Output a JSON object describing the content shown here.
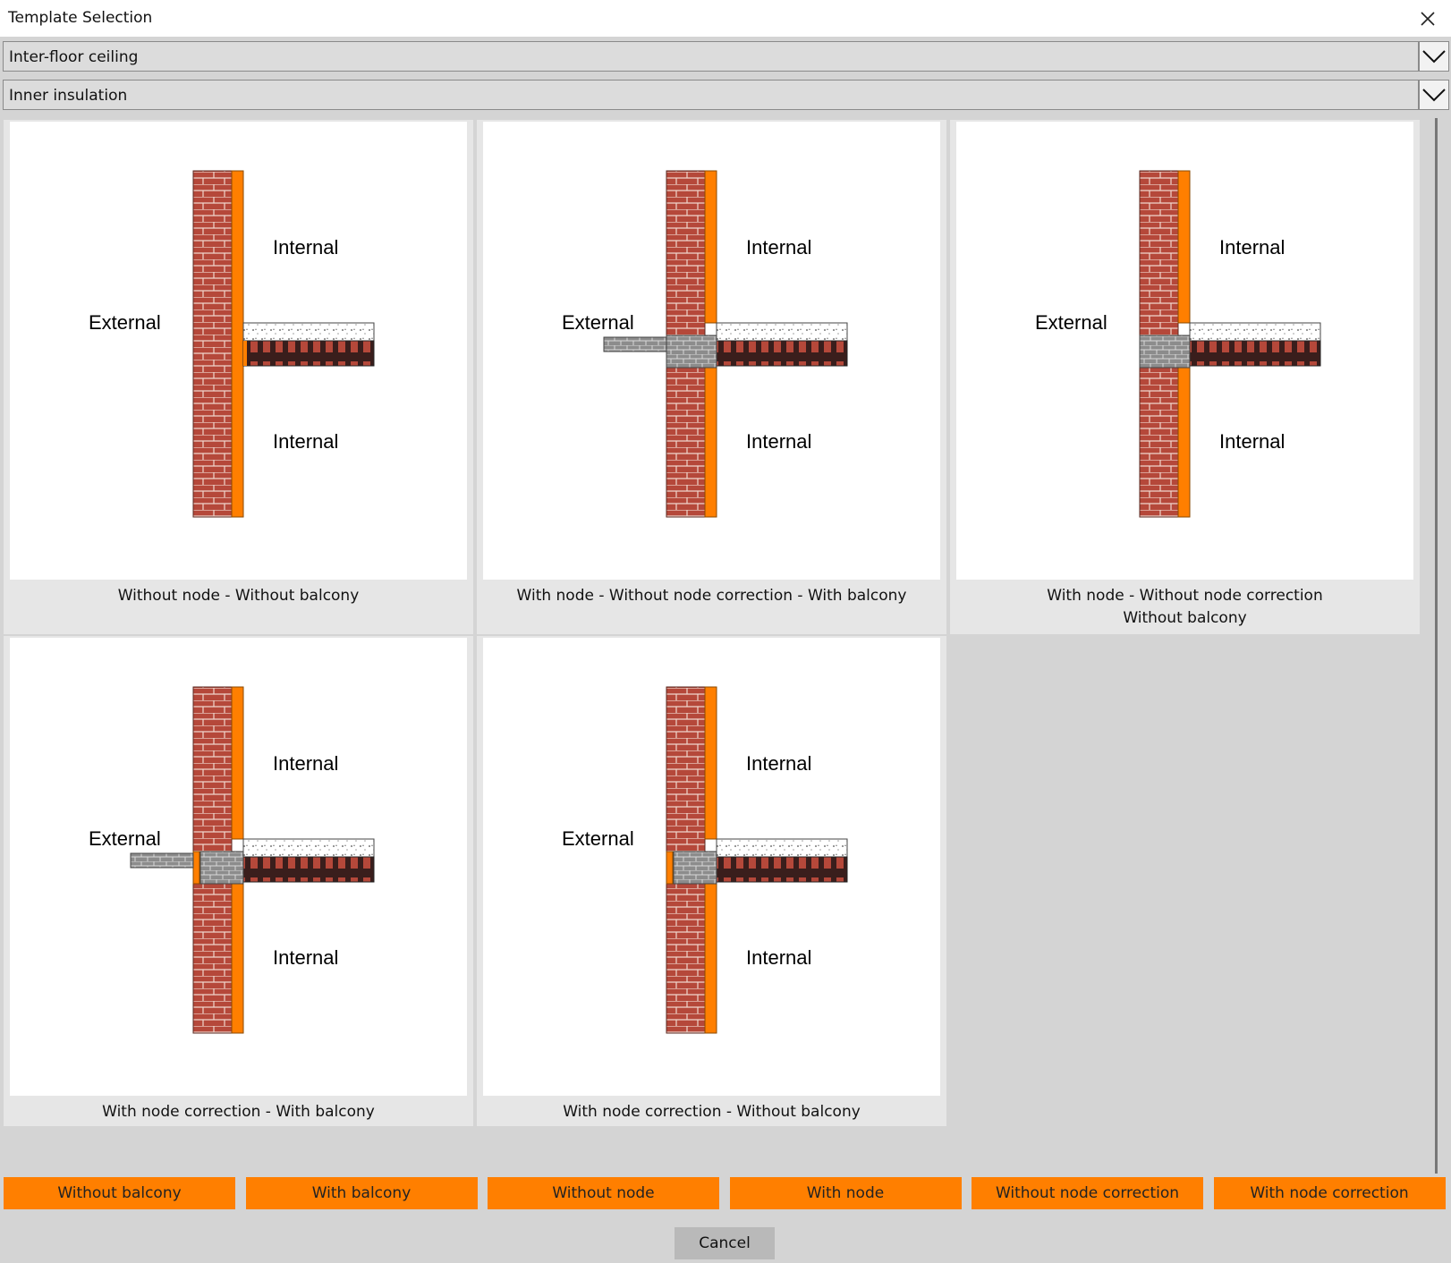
{
  "window": {
    "title": "Template Selection"
  },
  "dropdowns": [
    {
      "value": "Inter-floor ceiling"
    },
    {
      "value": "Inner insulation"
    }
  ],
  "templates": [
    {
      "caption": "Without node - Without balcony",
      "label_internal_top": "Internal",
      "label_external": "External",
      "label_internal_bottom": "Internal",
      "variant": "no-node-no-balcony"
    },
    {
      "caption": "With node - Without node correction - With balcony",
      "label_internal_top": "Internal",
      "label_external": "External",
      "label_internal_bottom": "Internal",
      "variant": "node-balcony"
    },
    {
      "caption": "With node - Without node correction\nWithout balcony",
      "label_internal_top": "Internal",
      "label_external": "External",
      "label_internal_bottom": "Internal",
      "variant": "node-no-balcony"
    },
    {
      "caption": "With node correction - With balcony",
      "label_internal_top": "Internal",
      "label_external": "External",
      "label_internal_bottom": "Internal",
      "variant": "correction-balcony"
    },
    {
      "caption": "With node correction - Without balcony",
      "label_internal_top": "Internal",
      "label_external": "External",
      "label_internal_bottom": "Internal",
      "variant": "correction-no-balcony"
    }
  ],
  "filters": [
    "Without balcony",
    "With balcony",
    "Without node",
    "With node",
    "Without node correction",
    "With node correction"
  ],
  "cancel_label": "Cancel",
  "colors": {
    "accent": "#ff7f00",
    "brick": "#b5483a",
    "mortar": "#e8c8bc",
    "concrete_gray": "#8c8c8c",
    "slab_dark": "#3a1e1c"
  }
}
